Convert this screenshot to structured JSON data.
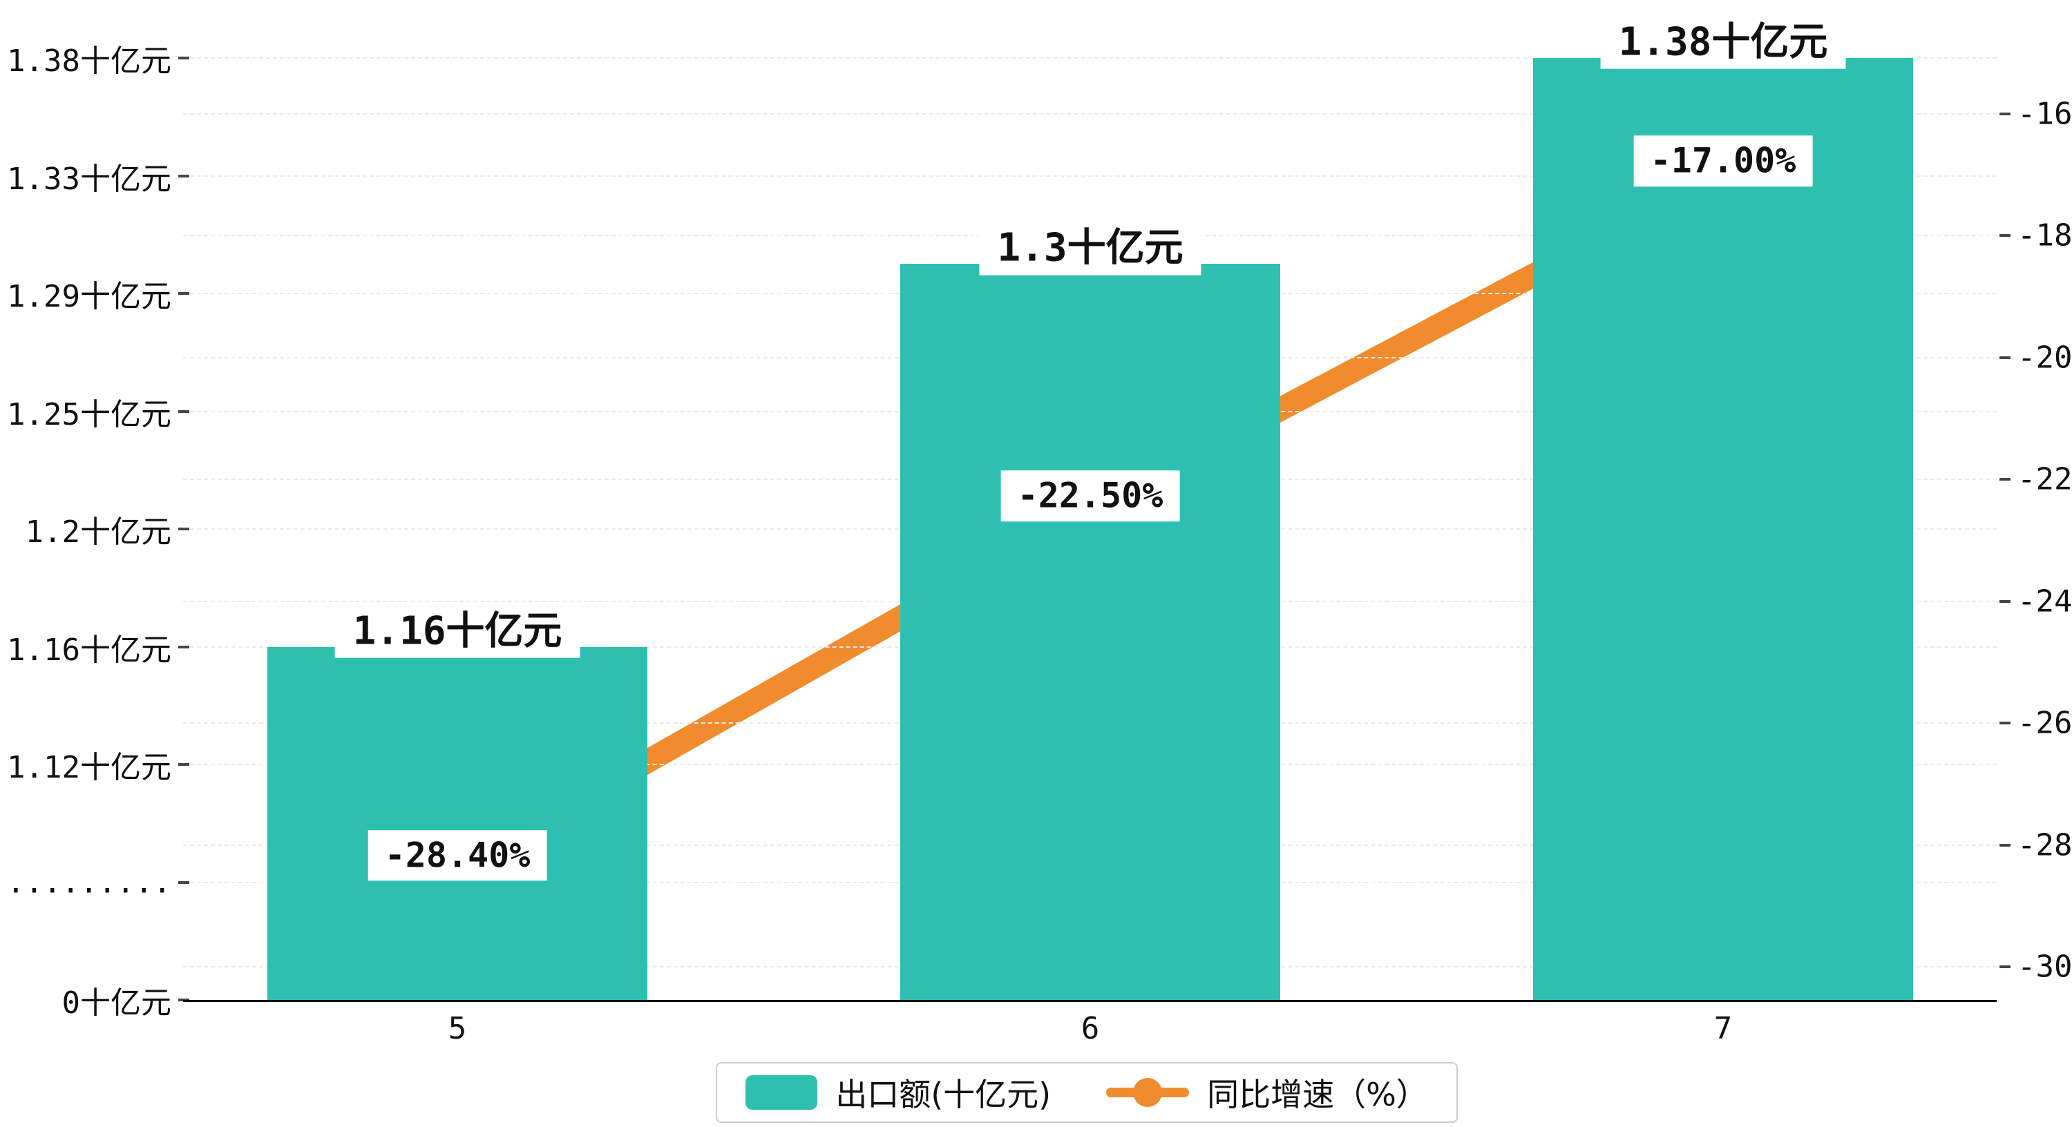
{
  "colors": {
    "bar": "#2FBFB1",
    "line": "#F08C2D",
    "grid": "#ebebeb",
    "axis": "#111111",
    "label_bg": "#ffffff",
    "text": "#111111",
    "legend_border": "#cccccc"
  },
  "chart_data": {
    "type": "bar+line",
    "title": "",
    "categories": [
      "5",
      "6",
      "7"
    ],
    "series": [
      {
        "name": "出口额(十亿元)",
        "type": "bar",
        "axis": "left",
        "values": [
          1.16,
          1.3,
          1.38
        ],
        "value_labels": [
          "1.16十亿元",
          "1.3十亿元",
          "1.38十亿元"
        ],
        "color": "#2FBFB1"
      },
      {
        "name": "同比增速（%）",
        "type": "line",
        "axis": "right",
        "values": [
          -28.4,
          -22.5,
          -17.0
        ],
        "value_labels": [
          "-28.40%",
          "-22.50%",
          "-17.00%"
        ],
        "color": "#F08C2D"
      }
    ],
    "left_axis": {
      "tick_labels_top_to_bottom": [
        "1.38十亿元",
        "1.33十亿元",
        "1.29十亿元",
        "1.25十亿元",
        "1.2十亿元",
        "1.16十亿元",
        "1.12十亿元",
        ".........",
        "0十亿元"
      ],
      "tick_values_top_to_bottom": [
        1.38,
        1.33,
        1.29,
        1.25,
        1.2,
        1.16,
        1.12,
        null,
        0
      ],
      "has_break": true
    },
    "right_axis": {
      "tick_labels_top_to_bottom": [
        "-16",
        "-18",
        "-20",
        "-22",
        "-24",
        "-26",
        "-28",
        "-30"
      ],
      "range": [
        -30,
        -16
      ]
    },
    "x_axis": {
      "tick_labels": [
        "5",
        "6",
        "7"
      ]
    },
    "legend": [
      {
        "label": "出口额(十亿元)",
        "marker": "bar"
      },
      {
        "label": "同比增速（%）",
        "marker": "line-dot"
      }
    ],
    "grid": true,
    "legend_position": "bottom-center"
  }
}
